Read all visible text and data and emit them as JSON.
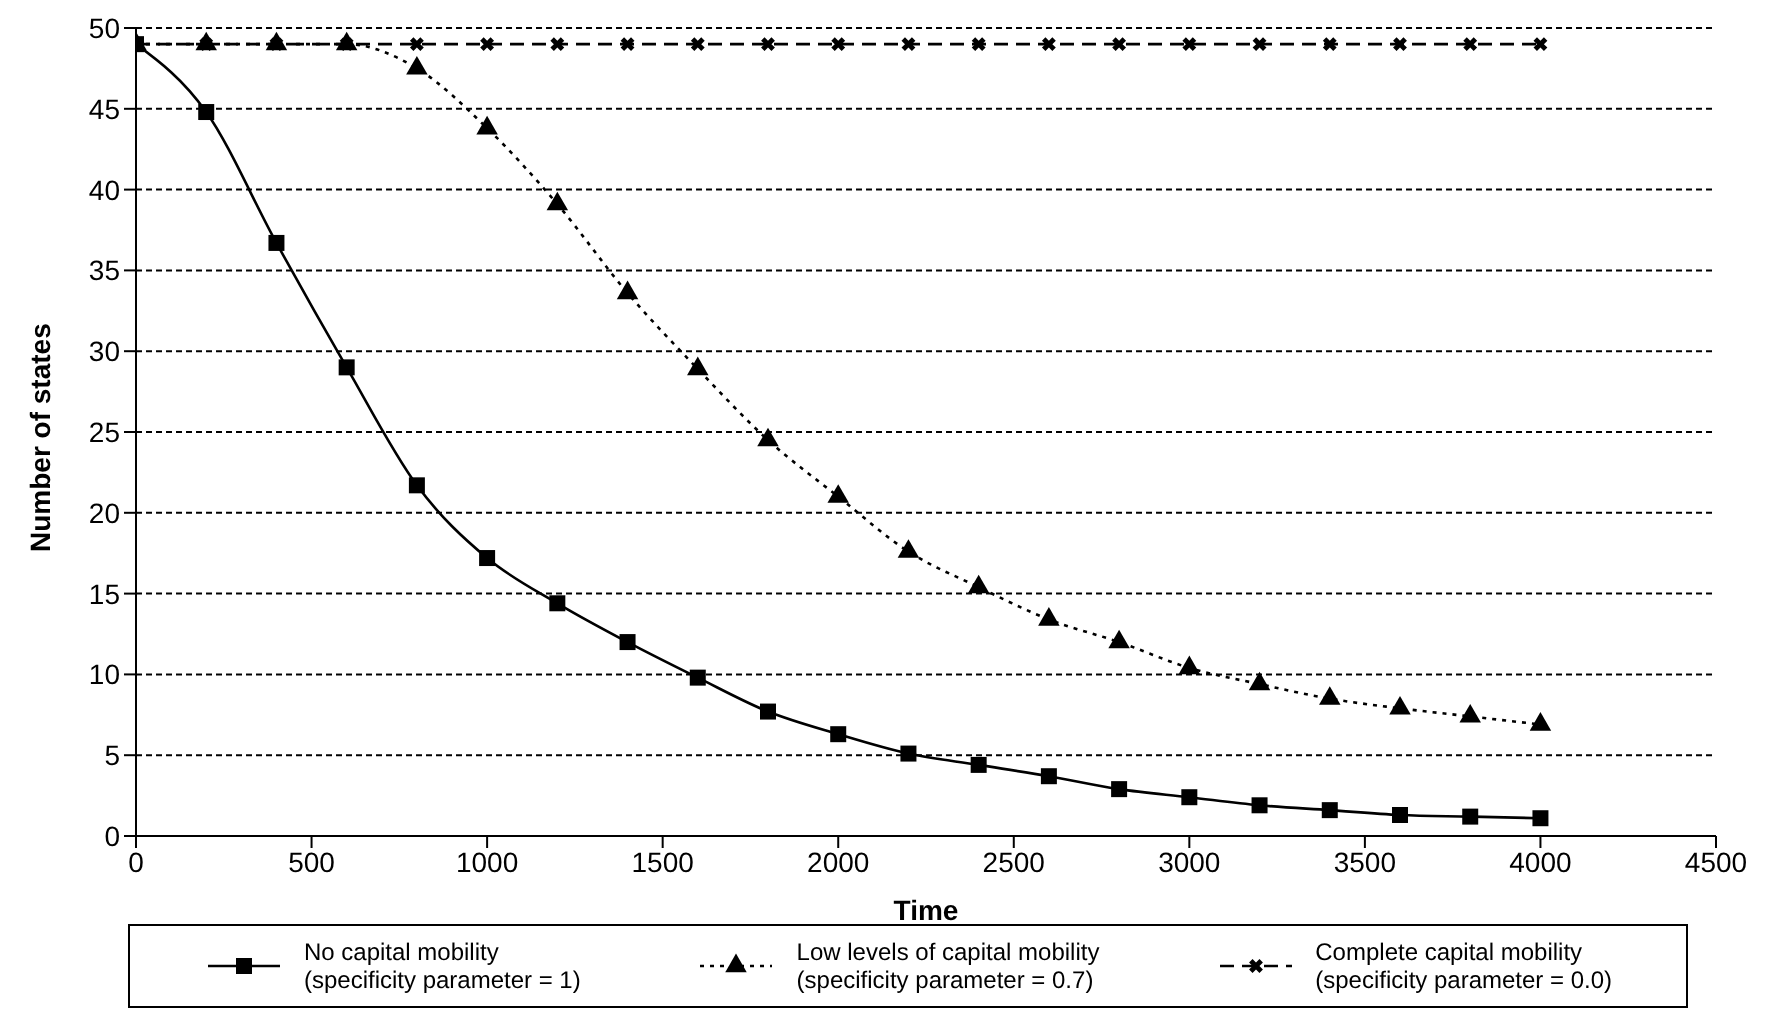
{
  "chart_data": {
    "type": "line",
    "xlabel": "Time",
    "ylabel": "Number of states",
    "x": [
      0,
      200,
      400,
      600,
      800,
      1000,
      1200,
      1400,
      1600,
      1800,
      2000,
      2200,
      2400,
      2600,
      2800,
      3000,
      3200,
      3400,
      3600,
      3800,
      4000
    ],
    "series": [
      {
        "name": "No capital mobility\n(specificity parameter = 1)",
        "color": "#000000",
        "marker": "square",
        "line_style": "solid",
        "values": [
          49,
          44.8,
          36.7,
          29,
          21.7,
          17.2,
          14.4,
          12,
          9.8,
          7.7,
          6.3,
          5.1,
          4.4,
          3.7,
          2.9,
          2.4,
          1.9,
          1.6,
          1.3,
          1.2,
          1.1
        ]
      },
      {
        "name": "Low levels of capital mobility\n(specificity parameter = 0.7)",
        "color": "#000000",
        "marker": "triangle",
        "line_style": "dotted",
        "values": [
          49,
          49,
          49,
          49,
          47.5,
          43.8,
          39.1,
          33.6,
          28.9,
          24.5,
          21,
          17.6,
          15.4,
          13.4,
          12,
          10.4,
          9.4,
          8.5,
          7.9,
          7.4,
          6.9
        ]
      },
      {
        "name": "Complete capital mobility\n(specificity parameter = 0.0)",
        "color": "#000000",
        "marker": "cross",
        "line_style": "dashed",
        "values": [
          49,
          49,
          49,
          49,
          49,
          49,
          49,
          49,
          49,
          49,
          49,
          49,
          49,
          49,
          49,
          49,
          49,
          49,
          49,
          49,
          49
        ]
      }
    ],
    "xlim": [
      0,
      4500
    ],
    "xticks": [
      0,
      500,
      1000,
      1500,
      2000,
      2500,
      3000,
      3500,
      4000,
      4500
    ],
    "ylim": [
      0,
      50
    ],
    "yticks": [
      0,
      5,
      10,
      15,
      20,
      25,
      30,
      35,
      40,
      45,
      50
    ],
    "grid": "y",
    "legend": "bottom"
  }
}
